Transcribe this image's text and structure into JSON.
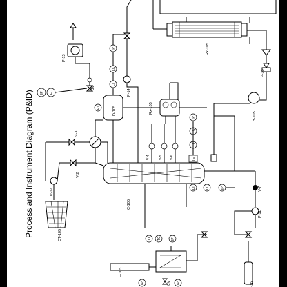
{
  "title": "Process and Instrument Diagram (P&ID)",
  "equipment": {
    "rx105": "Rx-105",
    "rx105b": "Rx-105",
    "p13": "P-13",
    "p14": "P-14",
    "d105": "D-105",
    "p15": "P-15",
    "b105": "B-105",
    "c105": "C-105",
    "p12": "P-12",
    "ct105": "CT-105",
    "p11": "P-11",
    "f105": "F-105",
    "v7": "V-7",
    "v3": "V-3",
    "v2": "V-2",
    "v4": "V-4",
    "v5": "V-5",
    "v6": "V-6",
    "t16": "-16"
  },
  "instruments": {
    "ip": "IP",
    "fc": "FC",
    "pc": "PC",
    "lt": "LT",
    "lc": "LC",
    "pt": "PT",
    "tt": "TT",
    "tc": "TC",
    "te": "TE",
    "cv": "CV"
  }
}
